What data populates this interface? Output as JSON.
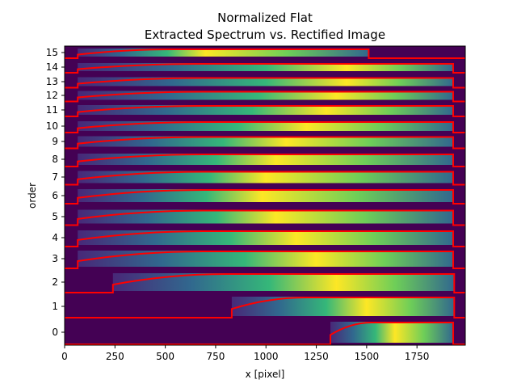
{
  "chart_data": {
    "type": "heatmap",
    "title": "Normalized Flat",
    "subtitle": "Extracted Spectrum vs. Rectified Image",
    "xlabel": "x [pixel]",
    "ylabel": "order",
    "xlim": [
      0,
      1990
    ],
    "x_ticks": [
      0,
      250,
      500,
      750,
      1000,
      1250,
      1500,
      1750
    ],
    "x_tick_labels": [
      "0",
      "250",
      "500",
      "750",
      "1000",
      "1250",
      "1500",
      "1750"
    ],
    "y_tick_labels": [
      "0",
      "1",
      "2",
      "3",
      "4",
      "5",
      "6",
      "7",
      "8",
      "9",
      "10",
      "11",
      "12",
      "13",
      "14",
      "15"
    ],
    "background_color": "#440154",
    "curve_color": "#ff0000",
    "orders": [
      {
        "order": 0,
        "x_start": 1320,
        "x_end": 1930,
        "peak_x": 1640
      },
      {
        "order": 1,
        "x_start": 830,
        "x_end": 1935,
        "peak_x": 1500
      },
      {
        "order": 2,
        "x_start": 240,
        "x_end": 1935,
        "peak_x": 1350
      },
      {
        "order": 3,
        "x_start": 65,
        "x_end": 1930,
        "peak_x": 1250
      },
      {
        "order": 4,
        "x_start": 65,
        "x_end": 1930,
        "peak_x": 1150
      },
      {
        "order": 5,
        "x_start": 65,
        "x_end": 1930,
        "peak_x": 1050
      },
      {
        "order": 6,
        "x_start": 65,
        "x_end": 1930,
        "peak_x": 980
      },
      {
        "order": 7,
        "x_start": 65,
        "x_end": 1930,
        "peak_x": 1000
      },
      {
        "order": 8,
        "x_start": 65,
        "x_end": 1930,
        "peak_x": 1050
      },
      {
        "order": 9,
        "x_start": 65,
        "x_end": 1930,
        "peak_x": 1100
      },
      {
        "order": 10,
        "x_start": 65,
        "x_end": 1930,
        "peak_x": 1200
      },
      {
        "order": 11,
        "x_start": 65,
        "x_end": 1930,
        "peak_x": 1300
      },
      {
        "order": 12,
        "x_start": 65,
        "x_end": 1930,
        "peak_x": 1350
      },
      {
        "order": 13,
        "x_start": 65,
        "x_end": 1930,
        "peak_x": 1400
      },
      {
        "order": 14,
        "x_start": 65,
        "x_end": 1930,
        "peak_x": 1400
      },
      {
        "order": 15,
        "x_start": 65,
        "x_end": 1510,
        "peak_x": 700
      }
    ],
    "legend": "none",
    "grid": false
  }
}
